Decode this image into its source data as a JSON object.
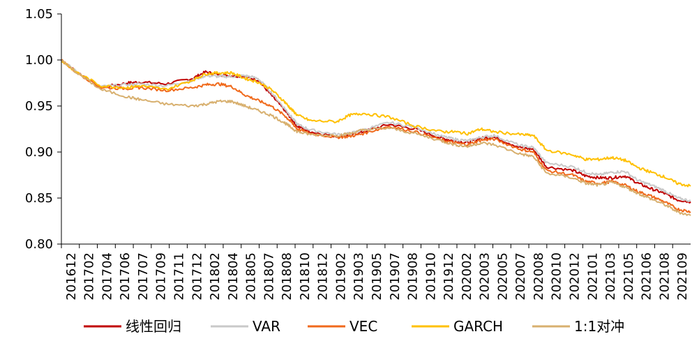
{
  "chart_data": {
    "type": "line",
    "title": "",
    "xlabel": "",
    "ylabel": "",
    "ylim": [
      0.8,
      1.05
    ],
    "yticks": [
      "0.80",
      "0.85",
      "0.90",
      "0.95",
      "1.00",
      "1.05"
    ],
    "grid": false,
    "legend_position": "bottom",
    "x_tick_labels": [
      "201612",
      "201702",
      "201704",
      "201706",
      "201707",
      "201709",
      "201711",
      "201712",
      "201802",
      "201804",
      "201805",
      "201807",
      "201808",
      "201810",
      "201812",
      "201902",
      "201903",
      "201905",
      "201907",
      "201908",
      "201910",
      "201912",
      "202002",
      "202003",
      "202005",
      "202007",
      "202008",
      "202010",
      "202012",
      "202101",
      "202103",
      "202105",
      "202106",
      "202108",
      "202109"
    ],
    "x_range": [
      0,
      48
    ],
    "series": [
      {
        "name": "线性回归",
        "color": "#c00000",
        "x": [
          0,
          1,
          3,
          5,
          6,
          8,
          10,
          11,
          12,
          13,
          14,
          15,
          16,
          17,
          17.5,
          18,
          19,
          21,
          22,
          23,
          25,
          27,
          29,
          30,
          31,
          32,
          33,
          35,
          36,
          37,
          39,
          40,
          41,
          42,
          43,
          44,
          45,
          46,
          47,
          48
        ],
        "y": [
          1.0,
          0.989,
          0.97,
          0.975,
          0.976,
          0.974,
          0.98,
          0.987,
          0.984,
          0.983,
          0.982,
          0.978,
          0.962,
          0.946,
          0.937,
          0.928,
          0.922,
          0.917,
          0.918,
          0.922,
          0.93,
          0.925,
          0.915,
          0.912,
          0.91,
          0.915,
          0.916,
          0.905,
          0.903,
          0.884,
          0.88,
          0.874,
          0.872,
          0.872,
          0.874,
          0.866,
          0.86,
          0.855,
          0.848,
          0.846
        ]
      },
      {
        "name": "VAR",
        "color": "#c9c9c9",
        "x": [
          0,
          1,
          3,
          5,
          6,
          8,
          10,
          11,
          12,
          13,
          14,
          15,
          16,
          17,
          17.5,
          18,
          19,
          21,
          22,
          23,
          25,
          27,
          29,
          30,
          31,
          32,
          33,
          35,
          36,
          37,
          39,
          40,
          41,
          42,
          43,
          44,
          45,
          46,
          47,
          48
        ],
        "y": [
          1.0,
          0.989,
          0.971,
          0.973,
          0.974,
          0.972,
          0.978,
          0.983,
          0.982,
          0.982,
          0.983,
          0.98,
          0.965,
          0.948,
          0.939,
          0.93,
          0.924,
          0.919,
          0.92,
          0.924,
          0.932,
          0.927,
          0.917,
          0.914,
          0.912,
          0.916,
          0.918,
          0.907,
          0.905,
          0.888,
          0.884,
          0.878,
          0.875,
          0.878,
          0.879,
          0.869,
          0.864,
          0.858,
          0.85,
          0.847
        ]
      },
      {
        "name": "VEC",
        "color": "#f06a1c",
        "x": [
          0,
          1,
          3,
          5,
          6,
          8,
          10,
          11,
          12,
          13,
          14,
          15,
          16,
          17,
          17.5,
          18,
          19,
          21,
          22,
          23,
          25,
          27,
          29,
          30,
          31,
          32,
          33,
          35,
          36,
          37,
          39,
          40,
          41,
          42,
          43,
          44,
          45,
          46,
          47,
          48
        ],
        "y": [
          1.0,
          0.988,
          0.97,
          0.969,
          0.97,
          0.967,
          0.97,
          0.973,
          0.974,
          0.971,
          0.962,
          0.956,
          0.95,
          0.94,
          0.933,
          0.925,
          0.92,
          0.916,
          0.917,
          0.92,
          0.928,
          0.922,
          0.913,
          0.91,
          0.908,
          0.913,
          0.914,
          0.903,
          0.9,
          0.88,
          0.875,
          0.868,
          0.866,
          0.868,
          0.864,
          0.857,
          0.852,
          0.846,
          0.838,
          0.835
        ]
      },
      {
        "name": "GARCH",
        "color": "#ffc000",
        "x": [
          0,
          1,
          3,
          5,
          6,
          8,
          10,
          11,
          12,
          13,
          14,
          15,
          16,
          17,
          17.5,
          18,
          19,
          21,
          22,
          23,
          25,
          27,
          29,
          30,
          31,
          32,
          33,
          35,
          36,
          37,
          39,
          40,
          41,
          42,
          43,
          44,
          45,
          46,
          47,
          48
        ],
        "y": [
          1.0,
          0.988,
          0.972,
          0.97,
          0.972,
          0.968,
          0.978,
          0.985,
          0.986,
          0.986,
          0.98,
          0.976,
          0.968,
          0.955,
          0.947,
          0.94,
          0.934,
          0.933,
          0.94,
          0.942,
          0.938,
          0.928,
          0.922,
          0.922,
          0.92,
          0.925,
          0.922,
          0.919,
          0.918,
          0.902,
          0.897,
          0.892,
          0.892,
          0.894,
          0.891,
          0.883,
          0.878,
          0.873,
          0.866,
          0.863
        ]
      },
      {
        "name": "1:1对冲",
        "color": "#d8b06f",
        "x": [
          0,
          1,
          3,
          5,
          6,
          8,
          10,
          11,
          12,
          13,
          14,
          15,
          16,
          17,
          17.5,
          18,
          19,
          21,
          22,
          23,
          25,
          27,
          29,
          30,
          31,
          32,
          33,
          35,
          36,
          37,
          39,
          40,
          41,
          42,
          43,
          44,
          45,
          46,
          47,
          48
        ],
        "y": [
          1.0,
          0.988,
          0.968,
          0.96,
          0.957,
          0.952,
          0.95,
          0.952,
          0.955,
          0.955,
          0.95,
          0.945,
          0.94,
          0.932,
          0.927,
          0.922,
          0.919,
          0.918,
          0.92,
          0.924,
          0.926,
          0.92,
          0.912,
          0.908,
          0.906,
          0.91,
          0.908,
          0.898,
          0.895,
          0.877,
          0.872,
          0.866,
          0.864,
          0.867,
          0.862,
          0.855,
          0.849,
          0.843,
          0.835,
          0.831
        ]
      }
    ]
  }
}
